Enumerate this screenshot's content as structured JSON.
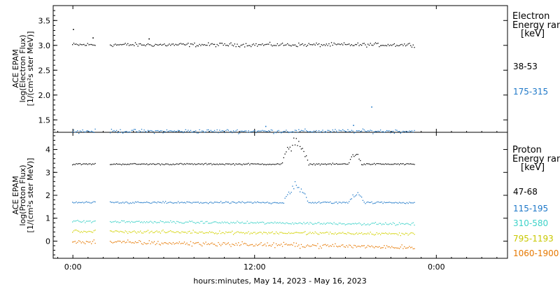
{
  "chart_data": [
    {
      "type": "scatter",
      "panel": "electron",
      "ylabel_lines": [
        "ACE EPAM",
        "log(Electron Flux)",
        "[1/(cm²s ster MeV)]"
      ],
      "ylim": [
        1.25,
        3.8
      ],
      "yticks": [
        1.5,
        2.0,
        2.5,
        3.0,
        3.5
      ],
      "ytick_labels": [
        "1.5",
        "2.0",
        "2.5",
        "3.0",
        "3.5"
      ],
      "legend_header": [
        "Electron",
        "Energy ran",
        "[keV]"
      ],
      "series": [
        {
          "name": "38-53",
          "color": "#000000",
          "baseline": 3.02,
          "noise": 0.035,
          "points": [
            {
              "x": 0.0,
              "y": 3.33
            },
            {
              "x": 1.3,
              "y": 3.16
            },
            {
              "x": 5.0,
              "y": 3.14
            }
          ]
        },
        {
          "name": "175-315",
          "color": "#1e78c8",
          "baseline": 1.28,
          "noise": 0.035,
          "points": [
            {
              "x": 19.7,
              "y": 1.77
            },
            {
              "x": 18.5,
              "y": 1.4
            },
            {
              "x": 12.7,
              "y": 1.38
            }
          ]
        }
      ]
    },
    {
      "type": "scatter",
      "panel": "proton",
      "ylabel_lines": [
        "ACE EPAM",
        "log(Proton Flux)",
        "[1/(cm²s ster MeV)]"
      ],
      "ylim": [
        -0.75,
        4.75
      ],
      "yticks": [
        0,
        1,
        2,
        3,
        4
      ],
      "ytick_labels": [
        "0",
        "1",
        "2",
        "3",
        "4"
      ],
      "legend_header": [
        "Proton",
        "Energy ran",
        "[keV]"
      ],
      "series": [
        {
          "name": "47-68",
          "color": "#000000",
          "baseline": 3.38,
          "noise": 0.03,
          "bumps": [
            {
              "start": 13.8,
              "end": 15.5,
              "peak": 4.5
            },
            {
              "start": 18.2,
              "end": 19.0,
              "peak": 4.0
            }
          ]
        },
        {
          "name": "115-195",
          "color": "#1e78c8",
          "baseline": 1.7,
          "noise": 0.04,
          "bumps": [
            {
              "start": 13.9,
              "end": 15.5,
              "peak": 2.6
            },
            {
              "start": 18.2,
              "end": 19.2,
              "peak": 2.2
            }
          ]
        },
        {
          "name": "310-580",
          "color": "#3cd2c8",
          "baseline": 0.88,
          "noise": 0.05
        },
        {
          "name": "795-1193",
          "color": "#d2d200",
          "baseline": 0.45,
          "noise": 0.06
        },
        {
          "name": "1060-1900",
          "color": "#e67800",
          "baseline": 0.0,
          "noise": 0.09
        }
      ]
    }
  ],
  "x_axis": {
    "xlabel": "hours:minutes, May 14, 2023 - May 16, 2023",
    "range_hours": [
      -1.3,
      28.7
    ],
    "ticks": [
      0,
      12,
      24
    ],
    "tick_labels": [
      "0:00",
      "12:00",
      "0:00"
    ],
    "data_start": -0.05,
    "data_gap": [
      1.45,
      2.4
    ],
    "data_end": 22.6
  }
}
